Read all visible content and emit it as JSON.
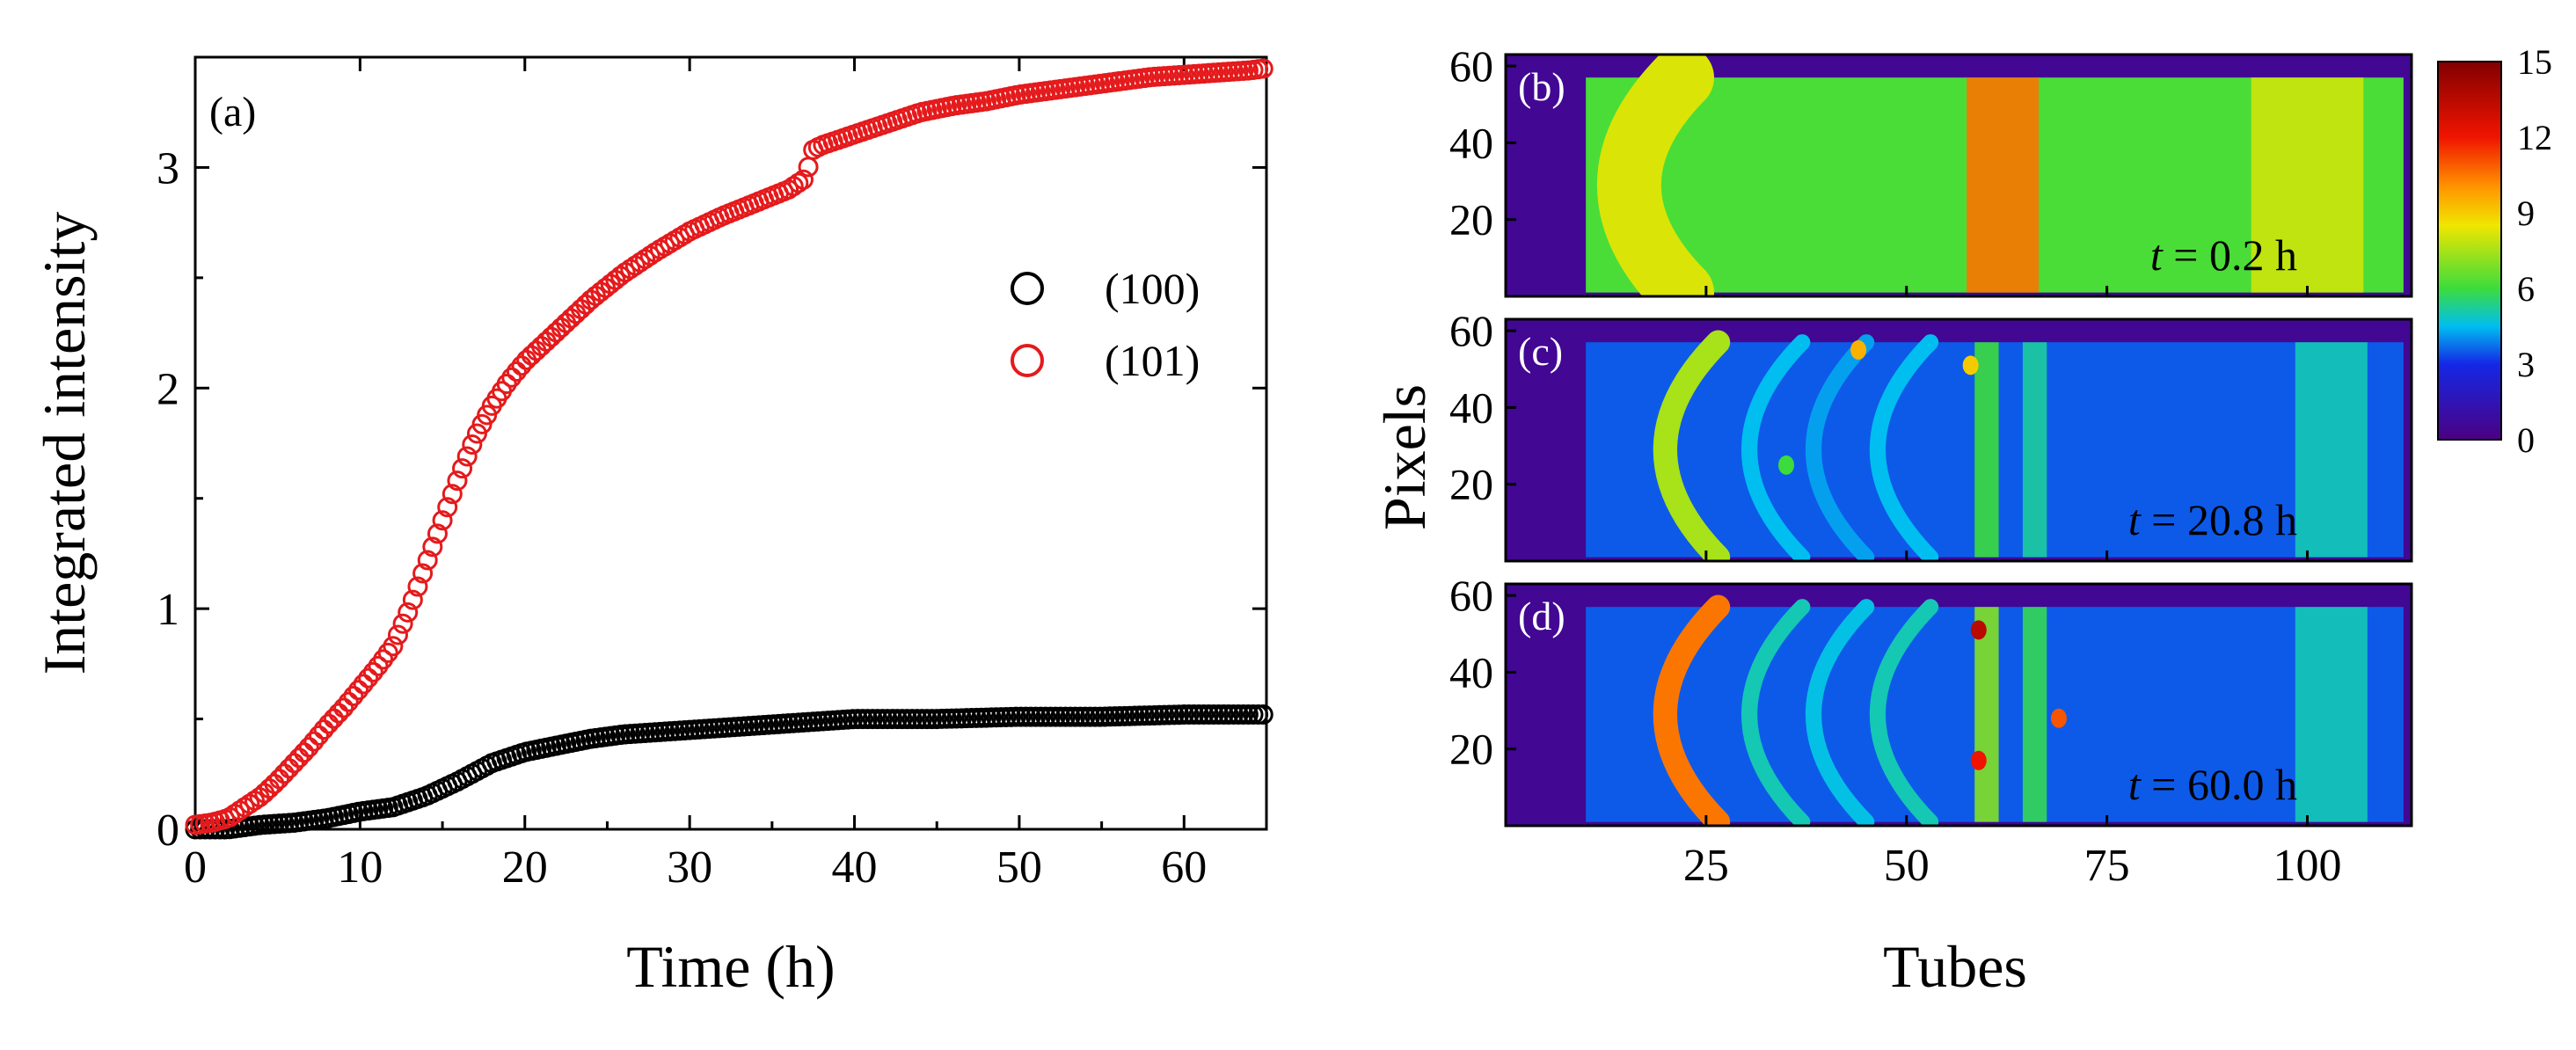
{
  "figure": {
    "colors": {
      "series_100": "#000000",
      "series_101": "#e41a1c",
      "axis": "#000000",
      "background": "#4b0082"
    }
  },
  "chart_data": [
    {
      "id": "panel-a",
      "type": "scatter",
      "panel_label": "(a)",
      "xlabel": "Time (h)",
      "ylabel": "Integrated intensity",
      "xlim": [
        0,
        65
      ],
      "ylim": [
        0,
        3.5
      ],
      "xticks": [
        0,
        10,
        20,
        30,
        40,
        50,
        60
      ],
      "yticks": [
        0,
        1,
        2,
        3
      ],
      "legend": {
        "placement": "center-right",
        "entries": [
          "(100)",
          "(101)"
        ]
      },
      "series": [
        {
          "name": "(100)",
          "color": "#000000",
          "x": [
            0,
            2,
            4,
            6,
            8,
            10,
            12,
            14,
            16,
            18,
            20,
            22,
            24,
            26,
            28,
            30,
            32,
            34,
            36,
            38,
            40,
            45,
            50,
            55,
            60,
            65
          ],
          "y": [
            0,
            0,
            0.02,
            0.03,
            0.05,
            0.08,
            0.1,
            0.15,
            0.22,
            0.3,
            0.35,
            0.38,
            0.41,
            0.43,
            0.44,
            0.45,
            0.46,
            0.47,
            0.48,
            0.49,
            0.5,
            0.5,
            0.51,
            0.51,
            0.52,
            0.52
          ]
        },
        {
          "name": "(101)",
          "color": "#e41a1c",
          "x": [
            0,
            1,
            2,
            3,
            4,
            5,
            6,
            7,
            8,
            9,
            10,
            11,
            12,
            13,
            14,
            15,
            16,
            17,
            18,
            19,
            20,
            22,
            24,
            26,
            28,
            30,
            32,
            34,
            36,
            37,
            37.5,
            38,
            40,
            42,
            44,
            46,
            48,
            50,
            52,
            54,
            56,
            58,
            60,
            62,
            64,
            65
          ],
          "y": [
            0.02,
            0.03,
            0.05,
            0.1,
            0.15,
            0.22,
            0.3,
            0.38,
            0.47,
            0.55,
            0.64,
            0.73,
            0.83,
            1.0,
            1.2,
            1.4,
            1.6,
            1.78,
            1.92,
            2.03,
            2.12,
            2.26,
            2.4,
            2.52,
            2.62,
            2.71,
            2.78,
            2.84,
            2.9,
            2.95,
            3.08,
            3.1,
            3.15,
            3.2,
            3.25,
            3.28,
            3.3,
            3.33,
            3.35,
            3.37,
            3.39,
            3.41,
            3.42,
            3.43,
            3.44,
            3.45
          ]
        }
      ]
    },
    {
      "id": "panel-heatmaps",
      "type": "heatmap",
      "xlabel": "Tubes",
      "ylabel": "Pixels",
      "xlim": [
        0,
        113
      ],
      "ylim": [
        0,
        63
      ],
      "xticks": [
        25,
        50,
        75,
        100
      ],
      "yticks": [
        20,
        40,
        60
      ],
      "colorbar": {
        "min": 0,
        "max": 15,
        "ticks": [
          0,
          3,
          6,
          9,
          12,
          15
        ]
      },
      "panels": [
        {
          "label": "(b)",
          "time_label": "t = 0.2 h",
          "time_var": "t",
          "time_text": " = 0.2 h",
          "bands": [
            {
              "tube": 18,
              "value": 8.2,
              "width": 8,
              "arc": true
            },
            {
              "tube": 62,
              "value": 10.5,
              "width": 9,
              "arc": false
            },
            {
              "tube": 100,
              "value": 8.0,
              "width": 14,
              "arc": false
            }
          ],
          "base_value": 6.2,
          "spots": []
        },
        {
          "label": "(c)",
          "time_label": "t = 20.8 h",
          "time_var": "t",
          "time_text": " = 20.8 h",
          "bands": [
            {
              "tube": 25,
              "value": 7.5,
              "width": 3,
              "arc": true
            },
            {
              "tube": 36,
              "value": 4.5,
              "width": 2,
              "arc": true
            },
            {
              "tube": 44,
              "value": 4.2,
              "width": 2,
              "arc": true
            },
            {
              "tube": 52,
              "value": 4.5,
              "width": 2,
              "arc": true
            },
            {
              "tube": 60,
              "value": 6.0,
              "width": 3,
              "arc": false
            },
            {
              "tube": 66,
              "value": 5.2,
              "width": 3,
              "arc": false
            },
            {
              "tube": 103,
              "value": 5.0,
              "width": 9,
              "arc": false
            }
          ],
          "base_value": 3.5,
          "spots": [
            {
              "tube": 44,
              "pixel": 55,
              "value": 9.5
            },
            {
              "tube": 58,
              "pixel": 51,
              "value": 9.0
            },
            {
              "tube": 35,
              "pixel": 25,
              "value": 6.0
            }
          ]
        },
        {
          "label": "(d)",
          "time_label": "t = 60.0 h",
          "time_var": "t",
          "time_text": " = 60.0 h",
          "bands": [
            {
              "tube": 25,
              "value": 10.5,
              "width": 3,
              "arc": true
            },
            {
              "tube": 36,
              "value": 5.0,
              "width": 2,
              "arc": true
            },
            {
              "tube": 44,
              "value": 4.6,
              "width": 2,
              "arc": true
            },
            {
              "tube": 52,
              "value": 5.0,
              "width": 2,
              "arc": true
            },
            {
              "tube": 60,
              "value": 7.0,
              "width": 3,
              "arc": false
            },
            {
              "tube": 66,
              "value": 5.8,
              "width": 3,
              "arc": false
            },
            {
              "tube": 103,
              "value": 5.0,
              "width": 9,
              "arc": false
            }
          ],
          "base_value": 3.5,
          "spots": [
            {
              "tube": 59,
              "pixel": 51,
              "value": 13.5
            },
            {
              "tube": 69,
              "pixel": 28,
              "value": 11.0
            },
            {
              "tube": 59,
              "pixel": 17,
              "value": 12.0
            }
          ]
        }
      ]
    }
  ]
}
